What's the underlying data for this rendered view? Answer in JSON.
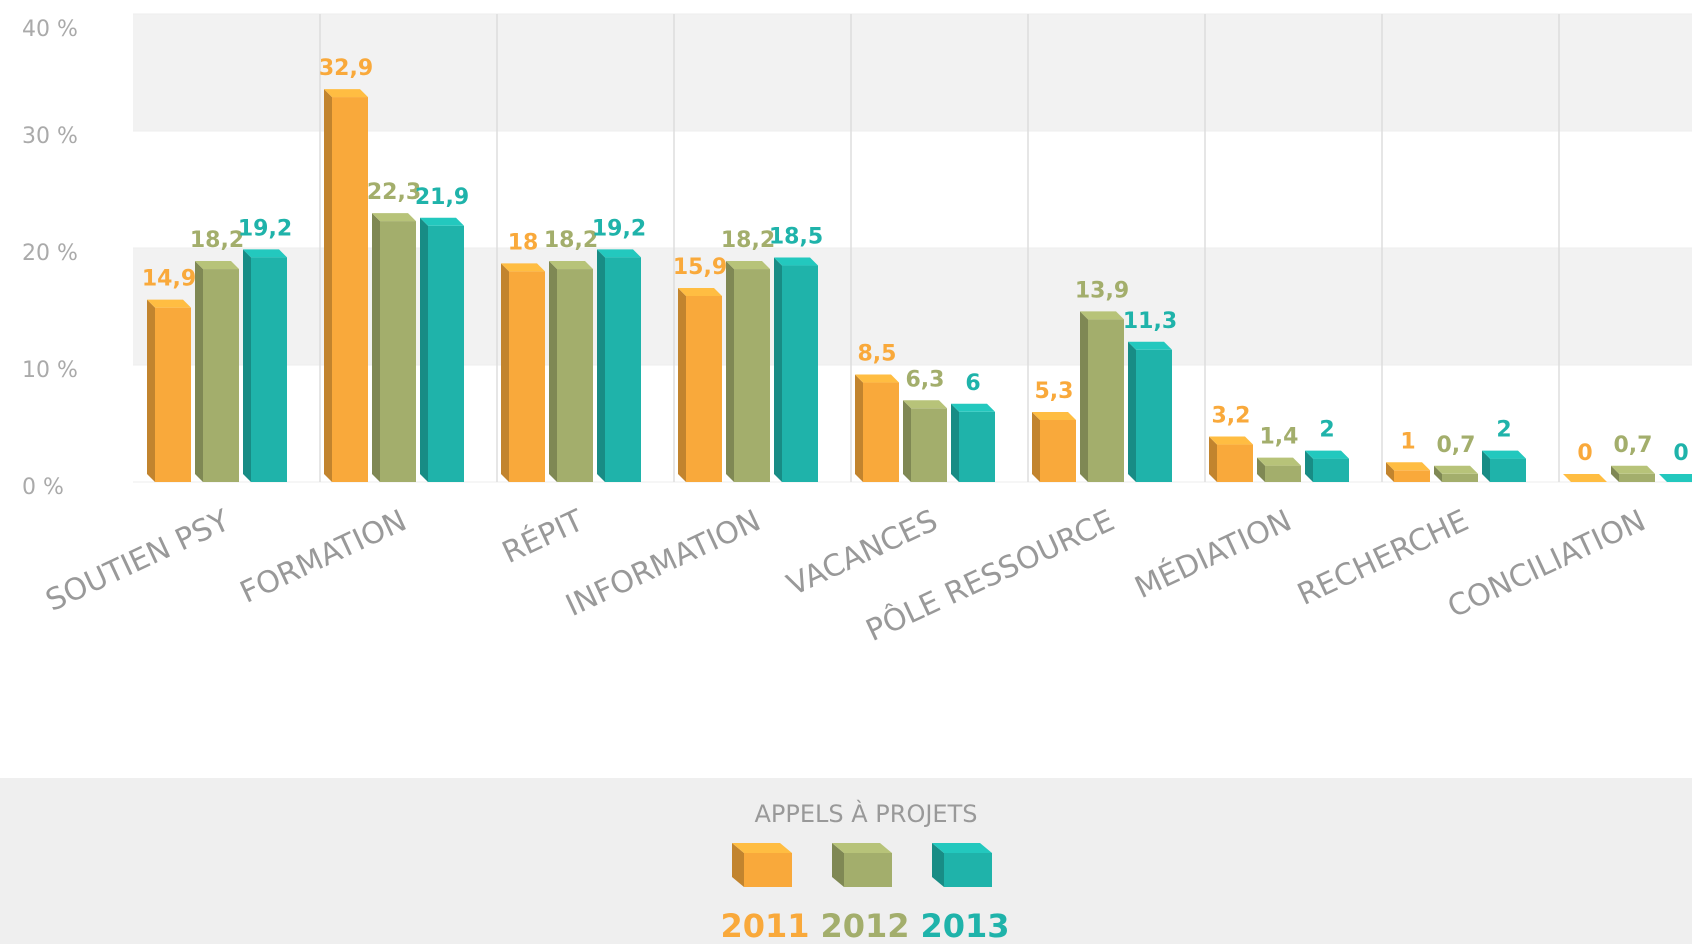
{
  "chart_data": {
    "type": "bar",
    "categories": [
      "SOUTIEN PSY",
      "FORMATION",
      "RÉPIT",
      "INFORMATION",
      "VACANCES",
      "PÔLE RESSOURCE",
      "MÉDIATION",
      "RECHERCHE",
      "CONCILIATION"
    ],
    "series": [
      {
        "name": "2011",
        "color": "#f9a93b",
        "values": [
          14.9,
          32.9,
          18,
          15.9,
          8.5,
          5.3,
          3.2,
          1,
          0
        ],
        "value_labels": [
          "14,9",
          "32,9",
          "18",
          "15,9",
          "8,5",
          "5,3",
          "3,2",
          "1",
          "0"
        ]
      },
      {
        "name": "2012",
        "color": "#a3ae6c",
        "values": [
          18.2,
          22.3,
          18.2,
          18.2,
          6.3,
          13.9,
          1.4,
          0.7,
          0.7
        ],
        "value_labels": [
          "18,2",
          "22,3",
          "18,2",
          "18,2",
          "6,3",
          "13,9",
          "1,4",
          "0,7",
          "0,7"
        ]
      },
      {
        "name": "2013",
        "color": "#1fb3aa",
        "values": [
          19.2,
          21.9,
          19.2,
          18.5,
          6,
          11.3,
          2,
          2,
          0
        ],
        "value_labels": [
          "19,2",
          "21,9",
          "19,2",
          "18,5",
          "6",
          "11,3",
          "2",
          "2",
          "0"
        ]
      }
    ],
    "ylim": [
      0,
      40
    ],
    "yticks": [
      {
        "value": 0,
        "label": "0 %"
      },
      {
        "value": 10,
        "label": "10 %"
      },
      {
        "value": 20,
        "label": "20 %"
      },
      {
        "value": 30,
        "label": "30 %"
      },
      {
        "value": 40,
        "label": "40 %"
      }
    ],
    "grid": true,
    "legend": {
      "title": "APPELS À PROJETS",
      "position": "bottom"
    }
  }
}
